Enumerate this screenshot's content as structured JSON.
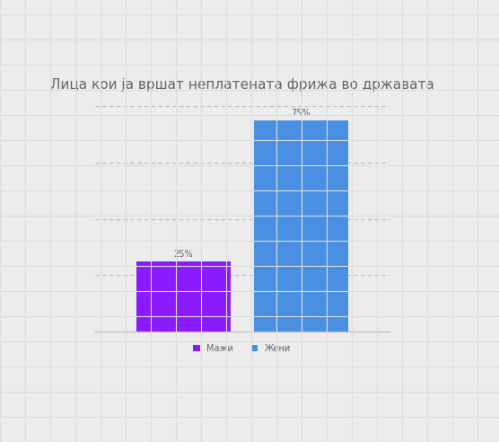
{
  "chart_data": {
    "type": "bar",
    "title": "Лица кои ја вршат неплатената фрижа во државата",
    "categories": [
      null
    ],
    "series": [
      {
        "name": "Мажи",
        "color": "#8c1aff",
        "values": [
          25
        ],
        "value_labels": [
          "25%"
        ]
      },
      {
        "name": "Жени",
        "color": "#4a90e2",
        "values": [
          75
        ],
        "value_labels": [
          "75%"
        ]
      }
    ],
    "ylim": [
      0,
      80
    ],
    "yticks": [
      0,
      20,
      40,
      60,
      80
    ],
    "grid": true,
    "data_labels": true,
    "tick_labels": false,
    "legend": "bottom"
  }
}
